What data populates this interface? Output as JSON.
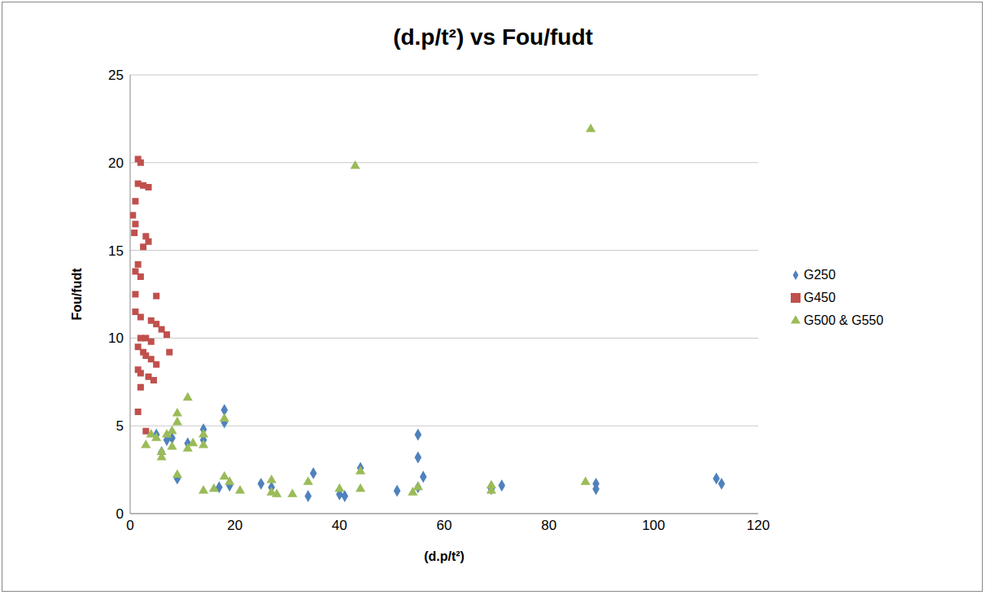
{
  "chart_data": {
    "type": "scatter",
    "title": "(d.p/t²) vs Fou/fudt",
    "x_label": "(d.p/t²)",
    "y_label": "Fou/fudt",
    "xlim": [
      0,
      120
    ],
    "xticks": [
      0,
      20,
      40,
      60,
      80,
      100,
      120
    ],
    "ylim": [
      0,
      25
    ],
    "yticks": [
      0,
      5,
      10,
      15,
      20,
      25
    ],
    "grid": true,
    "legend": "right",
    "series": [
      {
        "name": "G250",
        "color": "#4f81bd",
        "marker": "diamond",
        "x": [
          5,
          6,
          7,
          8,
          9,
          11,
          14,
          14,
          18,
          18,
          17,
          19,
          25,
          27,
          34,
          35,
          40,
          41,
          44,
          51,
          55,
          55,
          56,
          55,
          69,
          71,
          89,
          89,
          112,
          113
        ],
        "values": [
          4.5,
          3.5,
          4.2,
          4.3,
          2,
          4,
          4.8,
          4.2,
          5.9,
          5.2,
          1.5,
          1.6,
          1.7,
          1.5,
          1,
          2.3,
          1.1,
          1,
          2.6,
          1.3,
          4.5,
          3.2,
          2.1,
          1.5,
          1.4,
          1.6,
          1.7,
          1.4,
          2,
          1.7
        ]
      },
      {
        "name": "G450",
        "color": "#c0504d",
        "marker": "square",
        "x": [
          1.5,
          2,
          1.5,
          2.5,
          3.5,
          1,
          0.5,
          1,
          0.8,
          3,
          3.5,
          2.5,
          1.5,
          1,
          2,
          1,
          5,
          1,
          2,
          4,
          5,
          6,
          7,
          2,
          3,
          4,
          1.5,
          2.5,
          7.5,
          3,
          4,
          5,
          1.5,
          2,
          3.5,
          4.5,
          2,
          1.5,
          3
        ],
        "values": [
          20.2,
          20,
          18.8,
          18.7,
          18.6,
          17.8,
          17,
          16.5,
          16,
          15.8,
          15.5,
          15.2,
          14.2,
          13.8,
          13.5,
          12.5,
          12.4,
          11.5,
          11.2,
          11,
          10.8,
          10.5,
          10.2,
          10,
          10,
          9.8,
          9.5,
          9.2,
          9.2,
          9,
          8.8,
          8.5,
          8.2,
          8,
          7.8,
          7.6,
          7.2,
          5.8,
          4.7
        ]
      },
      {
        "name": "G500 & G550",
        "color": "#9bbb59",
        "marker": "triangle",
        "x": [
          3,
          4,
          5,
          6,
          6,
          7,
          8,
          8,
          9,
          9,
          9,
          11,
          11,
          12,
          14,
          14,
          14,
          16,
          18,
          18,
          19,
          21,
          27,
          27,
          28,
          31,
          34,
          40,
          43,
          44,
          44,
          54,
          55,
          69,
          69,
          87,
          88
        ],
        "values": [
          3.9,
          4.5,
          4.3,
          3.2,
          3.5,
          4.5,
          4.7,
          3.8,
          5.2,
          5.7,
          2.2,
          3.7,
          6.6,
          4,
          1.3,
          4.5,
          3.9,
          1.4,
          2.1,
          5.4,
          1.8,
          1.3,
          1.9,
          1.2,
          1.1,
          1.1,
          1.8,
          1.4,
          19.8,
          2.4,
          1.4,
          1.2,
          1.5,
          1.6,
          1.3,
          1.8,
          21.9
        ]
      }
    ]
  }
}
